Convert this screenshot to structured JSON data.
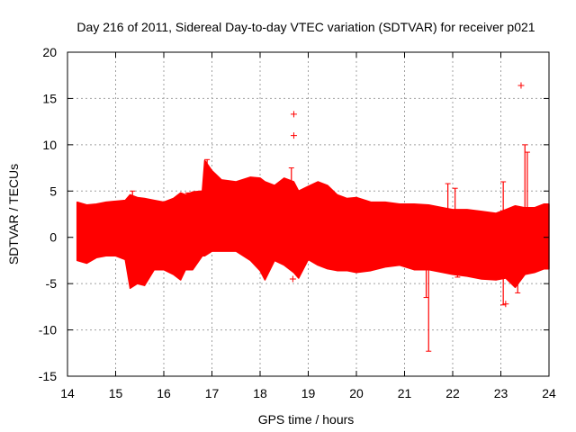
{
  "chart_data": {
    "type": "scatter",
    "title": "Day 216 of 2011, Sidereal Day-to-day VTEC variation (SDTVAR) for receiver p021",
    "xlabel": "GPS time / hours",
    "ylabel": "SDTVAR / TECUs",
    "xlim": [
      14,
      24
    ],
    "ylim": [
      -15,
      20
    ],
    "xticks": [
      14,
      15,
      16,
      17,
      18,
      19,
      20,
      21,
      22,
      23,
      24
    ],
    "yticks": [
      -15,
      -10,
      -5,
      0,
      5,
      10,
      15,
      20
    ],
    "grid": true,
    "marker": "+",
    "color": "#ff0000",
    "series": [
      {
        "name": "p021",
        "envelope": {
          "x": [
            14.2,
            14.4,
            14.6,
            14.8,
            15.0,
            15.2,
            15.3,
            15.45,
            15.6,
            15.8,
            16.0,
            16.2,
            16.35,
            16.45,
            16.6,
            16.8,
            16.85,
            17.0,
            17.2,
            17.5,
            17.8,
            18.0,
            18.1,
            18.3,
            18.5,
            18.7,
            18.8,
            19.0,
            19.2,
            19.4,
            19.6,
            19.8,
            20.0,
            20.3,
            20.6,
            20.9,
            21.2,
            21.5,
            21.8,
            22.0,
            22.3,
            22.6,
            22.9,
            23.1,
            23.3,
            23.5,
            23.7,
            23.9,
            24.0
          ],
          "upper": [
            3.8,
            3.5,
            3.6,
            3.8,
            3.9,
            4.0,
            4.6,
            4.3,
            4.2,
            4.0,
            3.8,
            4.2,
            4.8,
            4.6,
            4.9,
            5.0,
            8.3,
            7.2,
            6.2,
            6.0,
            6.5,
            6.4,
            6.0,
            5.6,
            6.4,
            6.0,
            5.0,
            5.5,
            6.0,
            5.6,
            4.6,
            4.2,
            4.3,
            3.8,
            3.8,
            3.6,
            3.6,
            3.5,
            3.2,
            3.0,
            3.0,
            2.8,
            2.6,
            3.0,
            3.4,
            3.2,
            3.2,
            3.6,
            3.6
          ],
          "lower": [
            -2.5,
            -2.8,
            -2.2,
            -2.0,
            -2.0,
            -2.4,
            -5.5,
            -5.0,
            -5.2,
            -3.5,
            -3.5,
            -4.0,
            -4.6,
            -3.5,
            -3.5,
            -2.0,
            -2.0,
            -1.5,
            -1.5,
            -1.5,
            -2.5,
            -3.6,
            -4.6,
            -2.5,
            -3.0,
            -3.8,
            -4.4,
            -2.4,
            -3.0,
            -3.4,
            -3.6,
            -3.6,
            -3.8,
            -3.6,
            -3.2,
            -3.0,
            -3.5,
            -3.5,
            -3.8,
            -4.0,
            -4.2,
            -4.5,
            -4.6,
            -4.4,
            -5.4,
            -4.0,
            -3.8,
            -3.4,
            -3.4
          ]
        },
        "spikes": [
          {
            "x": 15.35,
            "y": 5.0
          },
          {
            "x": 16.5,
            "y": 4.8
          },
          {
            "x": 16.9,
            "y": 8.4
          },
          {
            "x": 18.65,
            "y": 7.5
          },
          {
            "x": 21.5,
            "y": -12.3
          },
          {
            "x": 21.45,
            "y": -6.5
          },
          {
            "x": 21.9,
            "y": 5.8
          },
          {
            "x": 22.05,
            "y": 5.3
          },
          {
            "x": 22.1,
            "y": -4.3
          },
          {
            "x": 23.05,
            "y": 6.0
          },
          {
            "x": 23.05,
            "y": -7.3
          },
          {
            "x": 23.35,
            "y": -6.0
          },
          {
            "x": 23.5,
            "y": 10.0
          },
          {
            "x": 23.55,
            "y": 9.2
          }
        ],
        "outliers": [
          {
            "x": 18.7,
            "y": 13.3
          },
          {
            "x": 18.7,
            "y": 11.0
          },
          {
            "x": 18.68,
            "y": -4.5
          },
          {
            "x": 23.42,
            "y": 16.4
          },
          {
            "x": 23.1,
            "y": -7.2
          }
        ]
      }
    ]
  }
}
